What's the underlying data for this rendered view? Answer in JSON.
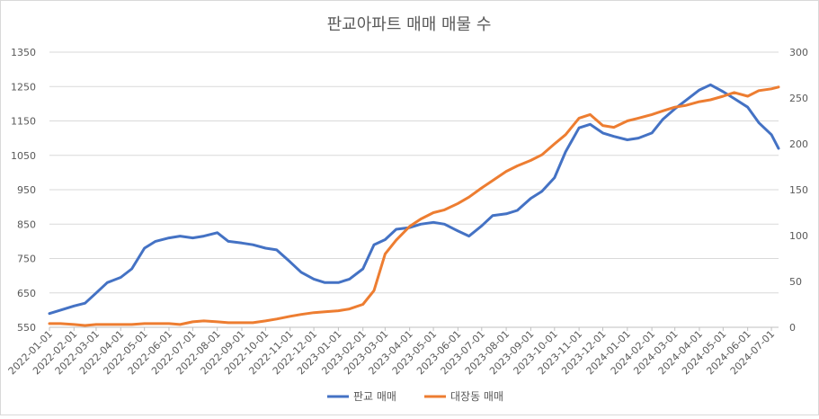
{
  "chart_data": {
    "type": "line",
    "title": "판교아파트 매매 매물 수",
    "x_ticks": [
      "2022-01-01",
      "2022-02-01",
      "2022-03-01",
      "2022-04-01",
      "2022-05-01",
      "2022-06-01",
      "2022-07-01",
      "2022-08-01",
      "2022-09-01",
      "2022-10-01",
      "2022-11-01",
      "2022-12-01",
      "2023-01-01",
      "2023-02-01",
      "2023-03-01",
      "2023-04-01",
      "2023-05-01",
      "2023-06-01",
      "2023-07-01",
      "2023-08-01",
      "2023-09-01",
      "2023-10-01",
      "2023-11-01",
      "2023-12-01",
      "2024-01-01",
      "2024-02-01",
      "2024-03-01",
      "2024-04-01",
      "2024-05-01",
      "2024-06-01",
      "2024-07-01"
    ],
    "y_left": {
      "min": 550,
      "max": 1350,
      "ticks": [
        550,
        650,
        750,
        850,
        950,
        1050,
        1150,
        1250,
        1350
      ]
    },
    "y_right": {
      "min": 0,
      "max": 300,
      "ticks": [
        0,
        50,
        100,
        150,
        200,
        250,
        300
      ]
    },
    "grid": true,
    "legend_position": "bottom",
    "series": [
      {
        "name": "판교 매매",
        "axis": "left",
        "color": "#4472C4",
        "points": [
          [
            "2022-01-01",
            590
          ],
          [
            "2022-01-15",
            600
          ],
          [
            "2022-02-01",
            612
          ],
          [
            "2022-02-15",
            620
          ],
          [
            "2022-03-01",
            650
          ],
          [
            "2022-03-15",
            680
          ],
          [
            "2022-04-01",
            695
          ],
          [
            "2022-04-15",
            720
          ],
          [
            "2022-05-01",
            780
          ],
          [
            "2022-05-15",
            800
          ],
          [
            "2022-06-01",
            810
          ],
          [
            "2022-06-15",
            815
          ],
          [
            "2022-07-01",
            810
          ],
          [
            "2022-07-15",
            815
          ],
          [
            "2022-08-01",
            825
          ],
          [
            "2022-08-15",
            800
          ],
          [
            "2022-09-01",
            795
          ],
          [
            "2022-09-15",
            790
          ],
          [
            "2022-10-01",
            780
          ],
          [
            "2022-10-15",
            775
          ],
          [
            "2022-11-01",
            740
          ],
          [
            "2022-11-15",
            710
          ],
          [
            "2022-12-01",
            690
          ],
          [
            "2022-12-15",
            680
          ],
          [
            "2023-01-01",
            680
          ],
          [
            "2023-01-15",
            690
          ],
          [
            "2023-02-01",
            720
          ],
          [
            "2023-02-15",
            790
          ],
          [
            "2023-03-01",
            805
          ],
          [
            "2023-03-15",
            835
          ],
          [
            "2023-04-01",
            840
          ],
          [
            "2023-04-15",
            850
          ],
          [
            "2023-05-01",
            855
          ],
          [
            "2023-05-15",
            850
          ],
          [
            "2023-06-01",
            830
          ],
          [
            "2023-06-15",
            815
          ],
          [
            "2023-07-01",
            845
          ],
          [
            "2023-07-15",
            875
          ],
          [
            "2023-08-01",
            880
          ],
          [
            "2023-08-15",
            890
          ],
          [
            "2023-09-01",
            925
          ],
          [
            "2023-09-15",
            945
          ],
          [
            "2023-10-01",
            985
          ],
          [
            "2023-10-15",
            1060
          ],
          [
            "2023-11-01",
            1130
          ],
          [
            "2023-11-15",
            1140
          ],
          [
            "2023-12-01",
            1115
          ],
          [
            "2023-12-15",
            1105
          ],
          [
            "2024-01-01",
            1095
          ],
          [
            "2024-01-15",
            1100
          ],
          [
            "2024-02-01",
            1115
          ],
          [
            "2024-02-15",
            1155
          ],
          [
            "2024-03-01",
            1185
          ],
          [
            "2024-03-15",
            1210
          ],
          [
            "2024-04-01",
            1240
          ],
          [
            "2024-04-15",
            1255
          ],
          [
            "2024-05-01",
            1235
          ],
          [
            "2024-05-15",
            1215
          ],
          [
            "2024-06-01",
            1190
          ],
          [
            "2024-06-15",
            1145
          ],
          [
            "2024-07-01",
            1110
          ],
          [
            "2024-07-10",
            1070
          ]
        ]
      },
      {
        "name": "대장동 매매",
        "axis": "right",
        "color": "#ED7D31",
        "points": [
          [
            "2022-01-01",
            4
          ],
          [
            "2022-01-15",
            4
          ],
          [
            "2022-02-01",
            3
          ],
          [
            "2022-02-15",
            2
          ],
          [
            "2022-03-01",
            3
          ],
          [
            "2022-03-15",
            3
          ],
          [
            "2022-04-01",
            3
          ],
          [
            "2022-04-15",
            3
          ],
          [
            "2022-05-01",
            4
          ],
          [
            "2022-05-15",
            4
          ],
          [
            "2022-06-01",
            4
          ],
          [
            "2022-06-15",
            3
          ],
          [
            "2022-07-01",
            6
          ],
          [
            "2022-07-15",
            7
          ],
          [
            "2022-08-01",
            6
          ],
          [
            "2022-08-15",
            5
          ],
          [
            "2022-09-01",
            5
          ],
          [
            "2022-09-15",
            5
          ],
          [
            "2022-10-01",
            7
          ],
          [
            "2022-10-15",
            9
          ],
          [
            "2022-11-01",
            12
          ],
          [
            "2022-11-15",
            14
          ],
          [
            "2022-12-01",
            16
          ],
          [
            "2022-12-15",
            17
          ],
          [
            "2023-01-01",
            18
          ],
          [
            "2023-01-15",
            20
          ],
          [
            "2023-02-01",
            25
          ],
          [
            "2023-02-15",
            40
          ],
          [
            "2023-03-01",
            80
          ],
          [
            "2023-03-15",
            95
          ],
          [
            "2023-04-01",
            110
          ],
          [
            "2023-04-15",
            118
          ],
          [
            "2023-05-01",
            125
          ],
          [
            "2023-05-15",
            128
          ],
          [
            "2023-06-01",
            135
          ],
          [
            "2023-06-15",
            142
          ],
          [
            "2023-07-01",
            152
          ],
          [
            "2023-07-15",
            160
          ],
          [
            "2023-08-01",
            170
          ],
          [
            "2023-08-15",
            176
          ],
          [
            "2023-09-01",
            182
          ],
          [
            "2023-09-15",
            188
          ],
          [
            "2023-10-01",
            200
          ],
          [
            "2023-10-15",
            210
          ],
          [
            "2023-11-01",
            228
          ],
          [
            "2023-11-15",
            232
          ],
          [
            "2023-12-01",
            220
          ],
          [
            "2023-12-15",
            218
          ],
          [
            "2024-01-01",
            225
          ],
          [
            "2024-01-15",
            228
          ],
          [
            "2024-02-01",
            232
          ],
          [
            "2024-02-15",
            236
          ],
          [
            "2024-03-01",
            240
          ],
          [
            "2024-03-15",
            242
          ],
          [
            "2024-04-01",
            246
          ],
          [
            "2024-04-15",
            248
          ],
          [
            "2024-05-01",
            252
          ],
          [
            "2024-05-15",
            256
          ],
          [
            "2024-06-01",
            252
          ],
          [
            "2024-06-15",
            258
          ],
          [
            "2024-07-01",
            260
          ],
          [
            "2024-07-10",
            262
          ]
        ]
      }
    ]
  }
}
